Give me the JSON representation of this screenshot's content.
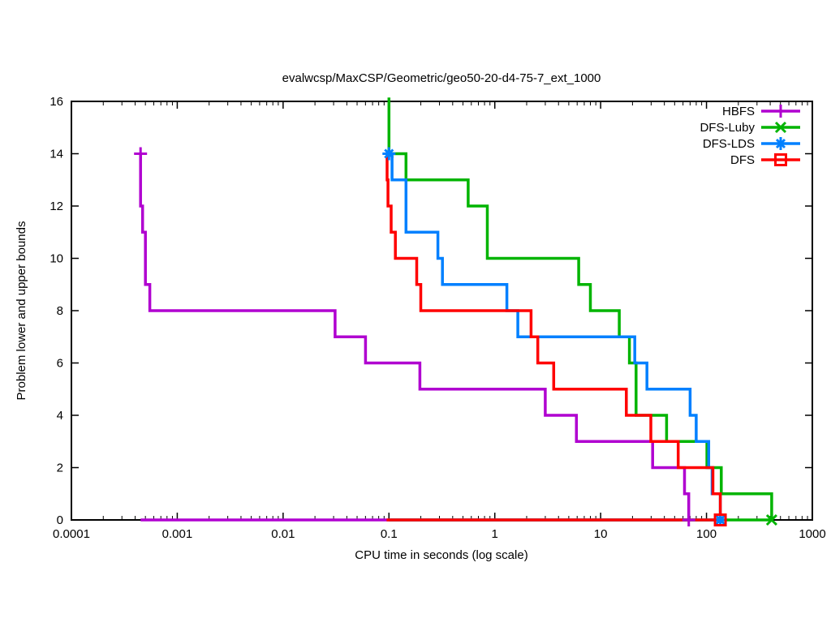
{
  "chart_data": {
    "type": "line",
    "subtype": "step-staircase-bounds",
    "title": "evalwcsp/MaxCSP/Geometric/geo50-20-d4-75-7_ext_1000",
    "xlabel": "CPU time in seconds (log scale)",
    "ylabel": "Problem lower and upper bounds",
    "x_scale": "log10",
    "xlim": [
      0.0001,
      1000
    ],
    "ylim": [
      0,
      16
    ],
    "x_ticks": [
      0.0001,
      0.001,
      0.01,
      0.1,
      1,
      10,
      100,
      1000
    ],
    "x_tick_labels": [
      "0.0001",
      "0.001",
      "0.01",
      "0.1",
      "1",
      "10",
      "100",
      "1000"
    ],
    "y_ticks": [
      0,
      2,
      4,
      6,
      8,
      10,
      12,
      14,
      16
    ],
    "grid": false,
    "legend_position": "top-right-inside",
    "series": [
      {
        "name": "HBFS",
        "color": "#b000d0",
        "marker": "plus",
        "upper_bound_steps": [
          [
            0.00045,
            14
          ],
          [
            0.00045,
            12
          ],
          [
            0.00047,
            11
          ],
          [
            0.0005,
            9
          ],
          [
            0.00055,
            8
          ],
          [
            0.031,
            7
          ],
          [
            0.06,
            6
          ],
          [
            0.196,
            5
          ],
          [
            3.0,
            4
          ],
          [
            5.9,
            3
          ],
          [
            31,
            2
          ],
          [
            62,
            1
          ],
          [
            68,
            0
          ]
        ],
        "lower_bound_steps": [
          [
            0.00045,
            0
          ],
          [
            68,
            0
          ]
        ],
        "marker_points": [
          [
            0.00045,
            14
          ],
          [
            68,
            0
          ]
        ]
      },
      {
        "name": "DFS-Luby",
        "color": "#00b400",
        "marker": "cross",
        "entry_clipped_above_top": true,
        "upper_bound_steps": [
          [
            0.1,
            16.15
          ],
          [
            0.1,
            14
          ],
          [
            0.145,
            13
          ],
          [
            0.56,
            12
          ],
          [
            0.85,
            10
          ],
          [
            6.2,
            9
          ],
          [
            8,
            8
          ],
          [
            15,
            7
          ],
          [
            18.7,
            6
          ],
          [
            21.6,
            4
          ],
          [
            42,
            3
          ],
          [
            101,
            2
          ],
          [
            138,
            1
          ],
          [
            413,
            0
          ]
        ],
        "lower_bound_steps": [
          [
            0.1,
            0
          ],
          [
            413,
            0
          ]
        ],
        "marker_points": [
          [
            413,
            0
          ]
        ]
      },
      {
        "name": "DFS-LDS",
        "color": "#0080ff",
        "marker": "asterisk",
        "upper_bound_steps": [
          [
            0.1,
            14
          ],
          [
            0.107,
            13
          ],
          [
            0.145,
            11
          ],
          [
            0.29,
            10
          ],
          [
            0.32,
            9
          ],
          [
            1.3,
            8
          ],
          [
            1.65,
            7
          ],
          [
            21,
            6
          ],
          [
            27.4,
            5
          ],
          [
            70,
            4
          ],
          [
            80,
            3
          ],
          [
            105,
            2
          ],
          [
            113,
            1
          ],
          [
            135,
            0
          ]
        ],
        "lower_bound_steps": [
          [
            0.1,
            0
          ],
          [
            135,
            0
          ]
        ],
        "marker_points": [
          [
            0.1,
            14
          ],
          [
            135,
            0
          ]
        ]
      },
      {
        "name": "DFS",
        "color": "#ff0000",
        "marker": "square",
        "upper_bound_steps": [
          [
            0.095,
            14
          ],
          [
            0.096,
            13
          ],
          [
            0.098,
            12
          ],
          [
            0.105,
            11
          ],
          [
            0.115,
            10
          ],
          [
            0.183,
            9
          ],
          [
            0.2,
            8
          ],
          [
            2.2,
            7
          ],
          [
            2.55,
            6
          ],
          [
            3.6,
            5
          ],
          [
            17.5,
            4
          ],
          [
            29.8,
            3
          ],
          [
            54,
            2
          ],
          [
            115,
            1
          ],
          [
            135,
            0
          ]
        ],
        "lower_bound_steps": [
          [
            0.095,
            0
          ],
          [
            135,
            0
          ]
        ],
        "marker_points": [
          [
            135,
            0
          ]
        ]
      }
    ]
  }
}
